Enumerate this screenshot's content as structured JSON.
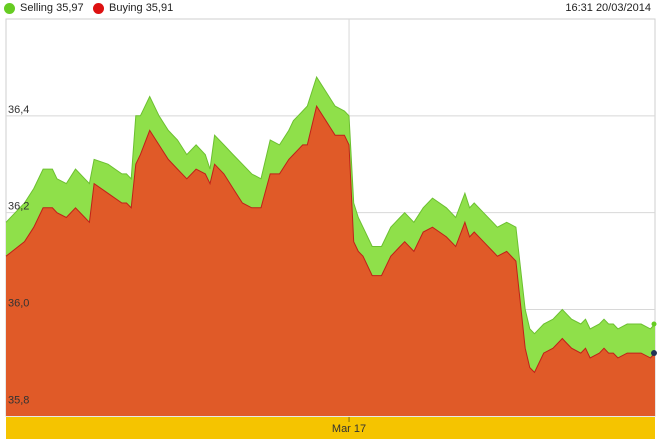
{
  "legend": {
    "selling_label": "Selling 35,97",
    "buying_label": "Buying 35,91",
    "timestamp": "16:31 20/03/2014"
  },
  "colors": {
    "selling": "#8fe04a",
    "selling_dot": "#66cc22",
    "buying": "#e05a28",
    "buying_line": "#c0201a",
    "buying_dot": "#dd1111",
    "axis_band": "#f5c400"
  },
  "chart_data": {
    "type": "area",
    "title": "",
    "xlabel": "",
    "ylabel": "",
    "ylim": [
      35.78,
      36.6
    ],
    "yticks": [
      {
        "value": 36.4,
        "label": "36,4"
      },
      {
        "value": 36.2,
        "label": "36,2"
      },
      {
        "value": 36.0,
        "label": "36,0"
      },
      {
        "value": 35.8,
        "label": "35,8"
      }
    ],
    "x_label": {
      "text": "Mar 17",
      "position": 74
    },
    "x_range": [
      0,
      140
    ],
    "grid": true,
    "series": [
      {
        "name": "Selling 35,97",
        "x": [
          0,
          4,
          6,
          8,
          10,
          11,
          13,
          15,
          17,
          18,
          19,
          22,
          25,
          26,
          27,
          28,
          29,
          31,
          33,
          35,
          37,
          39,
          41,
          43,
          44,
          45,
          47,
          49,
          51,
          53,
          55,
          57,
          59,
          61,
          62,
          63,
          64,
          65,
          67,
          69,
          71,
          73,
          74,
          75,
          76,
          77,
          79,
          81,
          83,
          84,
          85,
          86,
          88,
          90,
          92,
          95,
          97,
          99,
          100,
          101,
          103,
          105,
          106,
          108,
          110,
          112,
          113,
          114,
          116,
          118,
          120,
          121,
          122,
          124,
          125,
          126,
          128,
          129,
          130,
          131,
          132,
          134,
          136,
          137,
          139,
          140
        ],
        "values": [
          36.18,
          36.22,
          36.25,
          36.29,
          36.29,
          36.27,
          36.26,
          36.29,
          36.27,
          36.26,
          36.31,
          36.3,
          36.28,
          36.28,
          36.27,
          36.4,
          36.4,
          36.44,
          36.4,
          36.37,
          36.35,
          36.32,
          36.34,
          36.32,
          36.29,
          36.36,
          36.34,
          36.32,
          36.3,
          36.28,
          36.27,
          36.35,
          36.34,
          36.37,
          36.39,
          36.4,
          36.41,
          36.42,
          36.48,
          36.45,
          36.42,
          36.41,
          36.4,
          36.22,
          36.19,
          36.17,
          36.13,
          36.13,
          36.17,
          36.18,
          36.19,
          36.2,
          36.18,
          36.21,
          36.23,
          36.21,
          36.19,
          36.24,
          36.21,
          36.22,
          36.2,
          36.18,
          36.17,
          36.18,
          36.17,
          36.0,
          35.96,
          35.95,
          35.97,
          35.98,
          36.0,
          35.99,
          35.98,
          35.97,
          35.98,
          35.96,
          35.97,
          35.98,
          35.97,
          35.97,
          35.96,
          35.97,
          35.97,
          35.97,
          35.96,
          35.97
        ],
        "color": "#8fe04a"
      },
      {
        "name": "Buying 35,91",
        "x": [
          0,
          4,
          6,
          8,
          10,
          11,
          13,
          15,
          17,
          18,
          19,
          22,
          25,
          26,
          27,
          28,
          29,
          31,
          33,
          35,
          37,
          39,
          41,
          43,
          44,
          45,
          47,
          49,
          51,
          53,
          55,
          57,
          59,
          61,
          62,
          63,
          64,
          65,
          67,
          69,
          71,
          73,
          74,
          75,
          76,
          77,
          79,
          81,
          83,
          84,
          85,
          86,
          88,
          90,
          92,
          95,
          97,
          99,
          100,
          101,
          103,
          105,
          106,
          108,
          110,
          112,
          113,
          114,
          116,
          118,
          120,
          121,
          122,
          124,
          125,
          126,
          128,
          129,
          130,
          131,
          132,
          134,
          136,
          137,
          139,
          140
        ],
        "values": [
          36.11,
          36.14,
          36.17,
          36.21,
          36.21,
          36.2,
          36.19,
          36.21,
          36.19,
          36.18,
          36.26,
          36.24,
          36.22,
          36.22,
          36.21,
          36.3,
          36.32,
          36.37,
          36.34,
          36.31,
          36.29,
          36.27,
          36.29,
          36.28,
          36.26,
          36.3,
          36.28,
          36.25,
          36.22,
          36.21,
          36.21,
          36.28,
          36.28,
          36.31,
          36.32,
          36.33,
          36.34,
          36.34,
          36.42,
          36.39,
          36.36,
          36.36,
          36.34,
          36.14,
          36.12,
          36.11,
          36.07,
          36.07,
          36.11,
          36.12,
          36.13,
          36.14,
          36.12,
          36.16,
          36.17,
          36.15,
          36.13,
          36.18,
          36.15,
          36.16,
          36.14,
          36.12,
          36.11,
          36.12,
          36.1,
          35.92,
          35.88,
          35.87,
          35.91,
          35.92,
          35.94,
          35.93,
          35.92,
          35.91,
          35.92,
          35.9,
          35.91,
          35.92,
          35.91,
          35.91,
          35.9,
          35.91,
          35.91,
          35.91,
          35.9,
          35.91
        ],
        "color": "#e05a28"
      }
    ]
  }
}
